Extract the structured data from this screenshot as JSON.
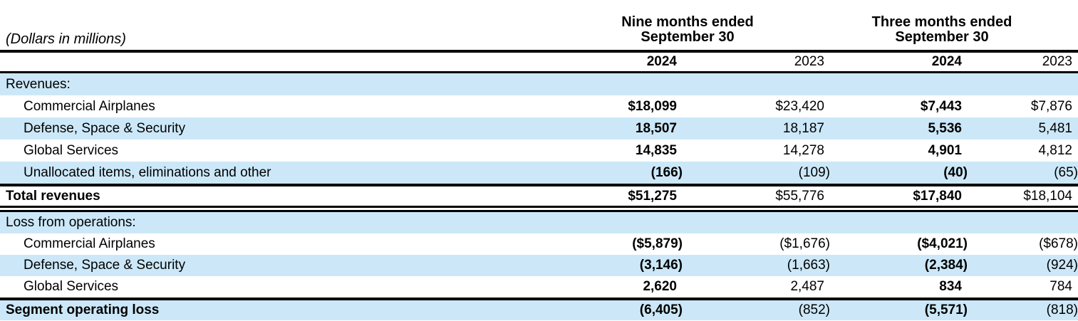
{
  "units_label": "(Dollars in millions)",
  "header": {
    "col_groups": [
      {
        "line1": "Nine months ended",
        "line2": "September 30"
      },
      {
        "line1": "Three months ended",
        "line2": "September 30"
      }
    ],
    "years": [
      "2024",
      "2023",
      "2024",
      "2023"
    ]
  },
  "colors": {
    "row_highlight": "#cce8f8",
    "rule": "#000000",
    "text": "#000000",
    "background": "#ffffff"
  },
  "chart_data": {
    "type": "table",
    "columns": [
      "Nine months ended September 30 2024",
      "Nine months ended September 30 2023",
      "Three months ended September 30 2024",
      "Three months ended September 30 2023"
    ],
    "sections": [
      {
        "header": "Revenues:",
        "rows": [
          {
            "label": "Commercial Airplanes",
            "values": [
              "$18,099",
              "$23,420",
              "$7,443",
              "$7,876"
            ]
          },
          {
            "label": "Defense, Space & Security",
            "values": [
              "18,507",
              "18,187",
              "5,536",
              "5,481"
            ]
          },
          {
            "label": "Global Services",
            "values": [
              "14,835",
              "14,278",
              "4,901",
              "4,812"
            ]
          },
          {
            "label": "Unallocated items, eliminations and other",
            "values": [
              "(166)",
              "(109)",
              "(40)",
              "(65)"
            ]
          }
        ],
        "total": {
          "label": "Total revenues",
          "values": [
            "$51,275",
            "$55,776",
            "$17,840",
            "$18,104"
          ]
        }
      },
      {
        "header": "Loss from operations:",
        "rows": [
          {
            "label": "Commercial Airplanes",
            "values": [
              "($5,879)",
              "($1,676)",
              "($4,021)",
              "($678)"
            ]
          },
          {
            "label": "Defense, Space & Security",
            "values": [
              "(3,146)",
              "(1,663)",
              "(2,384)",
              "(924)"
            ]
          },
          {
            "label": "Global Services",
            "values": [
              "2,620",
              "2,487",
              "834",
              "784"
            ]
          }
        ],
        "total": {
          "label": "Segment operating loss",
          "values": [
            "(6,405)",
            "(852)",
            "(5,571)",
            "(818)"
          ]
        }
      }
    ]
  }
}
